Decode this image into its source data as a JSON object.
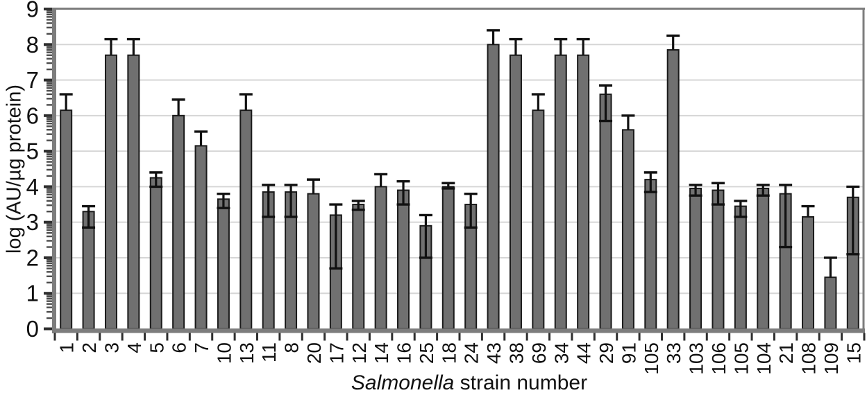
{
  "figure": {
    "background": "#ffffff",
    "bar_fill": "#707070",
    "bar_stroke": "#1a1a1a",
    "grid_color": "#d6d6d6",
    "spine_color": "#7d7d7d",
    "major_tick_color": "#2e2e2e",
    "minor_tick_color": "#4a4a4a",
    "error_color": "#111111",
    "text_color": "#111111"
  },
  "chart_data": {
    "type": "bar",
    "title": "",
    "xlabel": "Salmonella strain number",
    "xlabel_italic": "Salmonella",
    "xlabel_rest": " strain number",
    "ylabel": "log (AU/µg protein)",
    "ylim": [
      0,
      9
    ],
    "yticks": [
      0,
      1,
      2,
      3,
      4,
      5,
      6,
      7,
      8,
      9
    ],
    "grid": true,
    "minor_ticks": "log",
    "legend": "none",
    "categories": [
      "1",
      "2",
      "3",
      "4",
      "5",
      "6",
      "7",
      "10",
      "13",
      "11",
      "8",
      "20",
      "17",
      "12",
      "14",
      "16",
      "25",
      "18",
      "24",
      "43",
      "38",
      "69",
      "34",
      "44",
      "29",
      "91",
      "105",
      "33",
      "103",
      "106",
      "105",
      "104",
      "21",
      "108",
      "109",
      "15"
    ],
    "values": [
      6.15,
      3.3,
      7.7,
      7.7,
      4.25,
      6.0,
      5.15,
      3.65,
      6.15,
      3.85,
      3.85,
      3.8,
      3.2,
      3.5,
      4.0,
      3.9,
      2.9,
      4.0,
      3.5,
      8.0,
      7.7,
      6.15,
      7.7,
      7.7,
      6.6,
      5.6,
      4.2,
      7.85,
      3.95,
      3.9,
      3.45,
      3.95,
      3.8,
      3.15,
      1.45,
      3.7
    ],
    "error_high": [
      6.6,
      3.45,
      8.15,
      8.15,
      4.4,
      6.45,
      5.55,
      3.8,
      6.6,
      4.05,
      4.05,
      4.2,
      3.5,
      3.6,
      4.35,
      4.15,
      3.2,
      4.1,
      3.8,
      8.4,
      8.15,
      6.6,
      8.15,
      8.15,
      6.85,
      6.0,
      4.4,
      8.25,
      4.05,
      4.1,
      3.6,
      4.05,
      4.05,
      3.45,
      2.0,
      4.0
    ],
    "error_low": [
      null,
      2.85,
      null,
      null,
      4.0,
      null,
      null,
      3.4,
      null,
      3.15,
      3.15,
      null,
      1.7,
      3.35,
      null,
      3.5,
      2.0,
      3.95,
      2.85,
      null,
      null,
      null,
      null,
      null,
      5.85,
      null,
      3.85,
      null,
      3.75,
      3.5,
      3.15,
      3.75,
      2.3,
      null,
      null,
      2.1
    ]
  }
}
